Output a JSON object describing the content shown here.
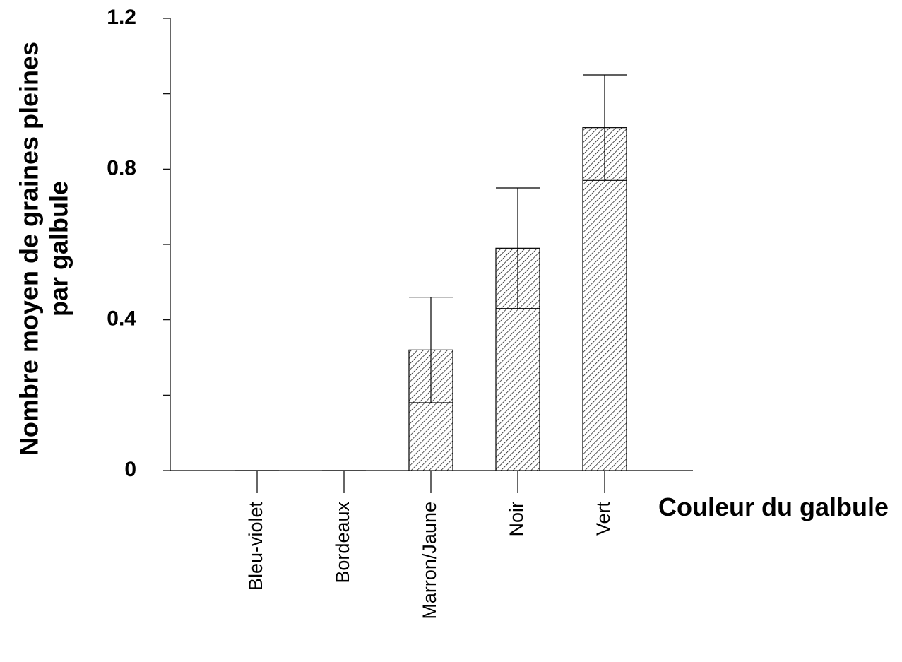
{
  "chart_data": {
    "type": "bar",
    "title": "",
    "xlabel": "Couleur du galbule",
    "ylabel_lines": [
      "Nombre moyen de graines pleines",
      "par galbule"
    ],
    "categories": [
      "Bleu-violet",
      "Bordeaux",
      "Marron/Jaune",
      "Noir",
      "Vert"
    ],
    "values": [
      0,
      0,
      0.32,
      0.59,
      0.91
    ],
    "errors": [
      0,
      0,
      0.14,
      0.16,
      0.14
    ],
    "ylim": [
      0,
      1.2
    ],
    "yticks": [
      {
        "value": 0,
        "label": "0"
      },
      {
        "value": 0.2,
        "label": ""
      },
      {
        "value": 0.4,
        "label": "0.4"
      },
      {
        "value": 0.6,
        "label": ""
      },
      {
        "value": 0.8,
        "label": "0.8"
      },
      {
        "value": 1.0,
        "label": ""
      },
      {
        "value": 1.2,
        "label": "1.2"
      }
    ],
    "grid": false,
    "bar_fill": "hatched",
    "bar_color": "#000000"
  }
}
